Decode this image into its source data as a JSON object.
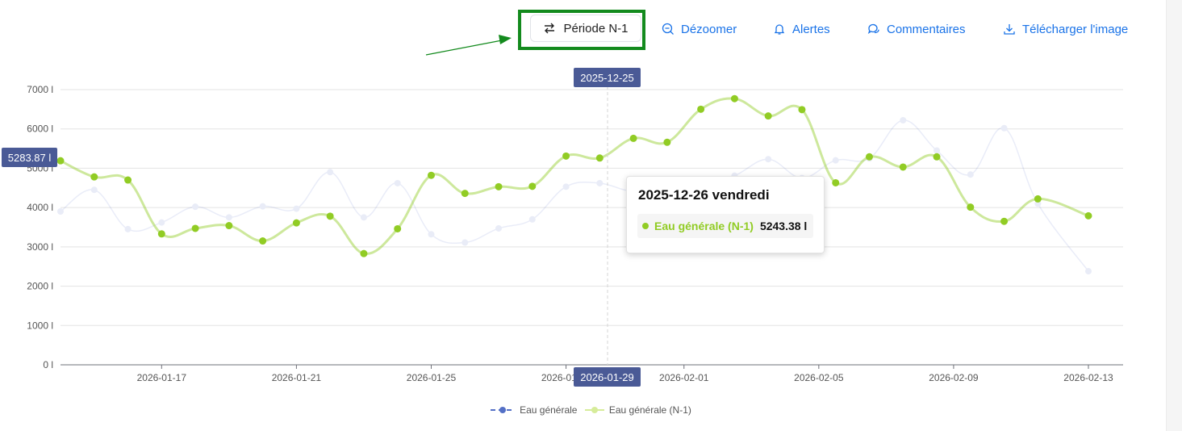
{
  "toolbar": {
    "period_label": "Période N-1",
    "unzoom_label": "Dézoomer",
    "alerts_label": "Alertes",
    "comments_label": "Commentaires",
    "download_label": "Télécharger l'image",
    "accent_color": "#1a73e8",
    "highlight_color": "#138a1d"
  },
  "crosshair": {
    "top_date": "2025-12-25",
    "bottom_date": "2026-01-29",
    "y_value": "5283.87 l"
  },
  "tooltip": {
    "title": "2025-12-26 vendredi",
    "series": "Eau générale (N-1)",
    "value": "5243.38 l"
  },
  "chart_data": {
    "type": "line",
    "ylim": [
      0,
      7000
    ],
    "y_ticks": [
      "0 l",
      "1000 l",
      "2000 l",
      "3000 l",
      "4000 l",
      "5000 l",
      "6000 l",
      "7000 l"
    ],
    "x_tick_labels": [
      "2026-01-17",
      "2026-01-21",
      "2026-01-25",
      "2026-01-29",
      "2026-02-01",
      "2026-02-05",
      "2026-02-09",
      "2026-02-13"
    ],
    "x_tick_positions": [
      3,
      7,
      11,
      15,
      18.5,
      22.5,
      26.5,
      30.5
    ],
    "x_range": [
      0,
      30.5
    ],
    "grid": true,
    "legend_position": "bottom-center",
    "series": [
      {
        "name": "Eau générale",
        "color": "#5470c6",
        "faded": true,
        "x": [
          0,
          1,
          2,
          3,
          4,
          5,
          6,
          7,
          8,
          9,
          10,
          11,
          12,
          13,
          14,
          15,
          16,
          17,
          18,
          19,
          20,
          21,
          22,
          23,
          24,
          25,
          26,
          27,
          28,
          29,
          30.5
        ],
        "values": [
          3900,
          4450,
          3450,
          3620,
          4020,
          3750,
          4030,
          3970,
          4900,
          3750,
          4620,
          3320,
          3110,
          3470,
          3700,
          4530,
          4620,
          4420,
          4650,
          4600,
          4810,
          5230,
          4750,
          5200,
          5250,
          6220,
          5450,
          4840,
          6020,
          4100,
          2380
        ]
      },
      {
        "name": "Eau générale (N-1)",
        "color": "#91cc24",
        "x": [
          0,
          1,
          2,
          3,
          4,
          5,
          6,
          7,
          8,
          9,
          10,
          11,
          12,
          13,
          14,
          15,
          16,
          17,
          18,
          19,
          20,
          21,
          22,
          23,
          24,
          25,
          26,
          27,
          28,
          29,
          30.5
        ],
        "values": [
          5190,
          4780,
          4700,
          3330,
          3470,
          3540,
          3150,
          3610,
          3780,
          2830,
          3460,
          4820,
          4360,
          4530,
          4540,
          5310,
          5260,
          5760,
          5660,
          6500,
          6770,
          6330,
          6490,
          4630,
          5290,
          5030,
          5290,
          4010,
          3650,
          4220,
          3790
        ]
      }
    ]
  }
}
